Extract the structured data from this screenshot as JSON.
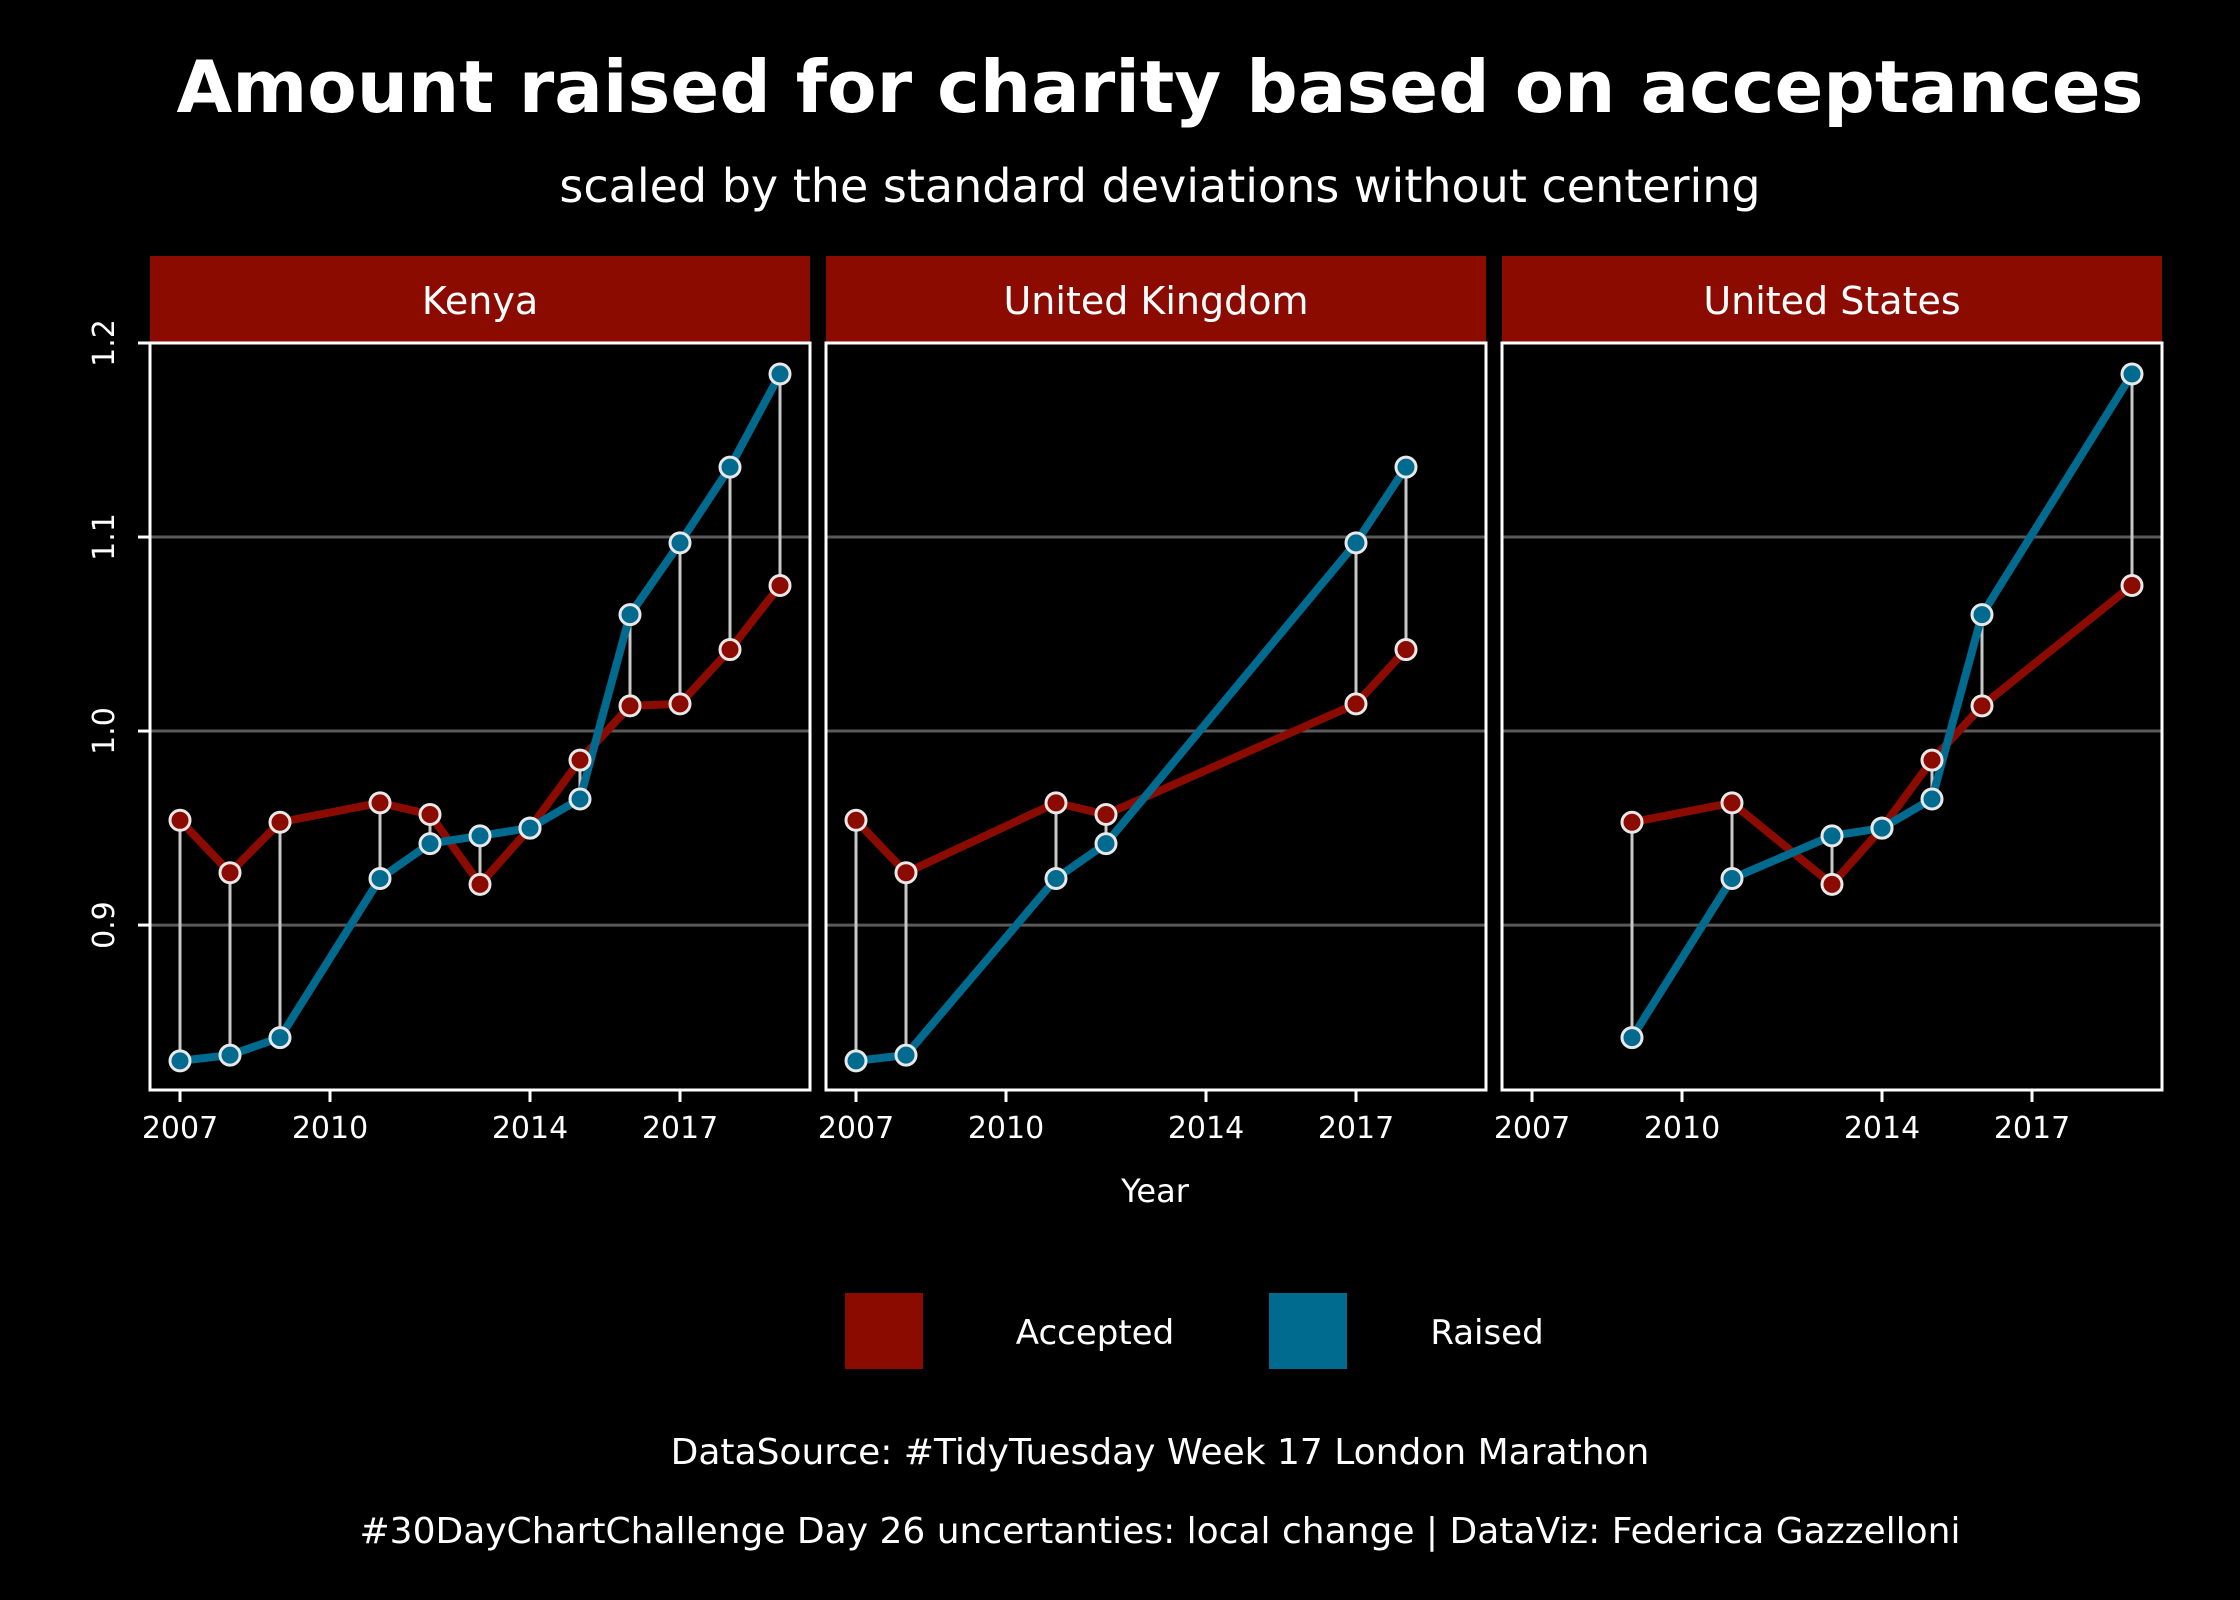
{
  "colors": {
    "background": "#000000",
    "strip": "#8b0b00",
    "accepted": "#8b0b00",
    "raised": "#006a8f",
    "segment": "#c8c8c8",
    "grid": "#5a5a5a",
    "text": "#ffffff"
  },
  "chart_data": {
    "type": "line",
    "title": "Amount raised for charity based on acceptances",
    "subtitle": "scaled by the standard deviations without centering",
    "xlabel": "Year",
    "ylabel": "",
    "xlim": [
      2006.4,
      2019.6
    ],
    "ylim": [
      0.815,
      1.2
    ],
    "x_ticks": [
      2007,
      2010,
      2014,
      2017
    ],
    "y_ticks": [
      0.9,
      1.0,
      1.1,
      1.2
    ],
    "y_tick_labels": [
      "0.9",
      "1.0",
      "1.1",
      "1.2"
    ],
    "grid": "horizontal",
    "legend_position": "bottom",
    "legend": [
      {
        "name": "Accepted",
        "color": "#8b0b00"
      },
      {
        "name": "Raised",
        "color": "#006a8f"
      }
    ],
    "facets": [
      {
        "name": "Kenya",
        "x": [
          2007,
          2008,
          2009,
          2011,
          2012,
          2013,
          2014,
          2015,
          2016,
          2017,
          2018,
          2019
        ],
        "series": [
          {
            "name": "Accepted",
            "values": [
              0.954,
              0.927,
              0.953,
              0.963,
              0.957,
              0.921,
              0.95,
              0.985,
              1.013,
              1.014,
              1.042,
              1.075
            ]
          },
          {
            "name": "Raised",
            "values": [
              0.83,
              0.833,
              0.842,
              0.924,
              0.942,
              0.946,
              0.95,
              0.965,
              1.06,
              1.097,
              1.136,
              1.184
            ]
          }
        ]
      },
      {
        "name": "United Kingdom",
        "x": [
          2007,
          2008,
          2011,
          2012,
          2017,
          2018
        ],
        "series": [
          {
            "name": "Accepted",
            "values": [
              0.954,
              0.927,
              0.963,
              0.957,
              1.014,
              1.042
            ]
          },
          {
            "name": "Raised",
            "values": [
              0.83,
              0.833,
              0.924,
              0.942,
              1.097,
              1.136
            ]
          }
        ]
      },
      {
        "name": "United States",
        "x": [
          2009,
          2011,
          2013,
          2014,
          2015,
          2016,
          2019
        ],
        "series": [
          {
            "name": "Accepted",
            "values": [
              0.953,
              0.963,
              0.921,
              0.95,
              0.985,
              1.013,
              1.075
            ]
          },
          {
            "name": "Raised",
            "values": [
              0.842,
              0.924,
              0.946,
              0.95,
              0.965,
              1.06,
              1.184
            ]
          }
        ]
      }
    ]
  },
  "captions": {
    "line1": "DataSource: #TidyTuesday Week 17 London Marathon",
    "line2": "#30DayChartChallenge Day 26 uncertanties: local change | DataViz: Federica Gazzelloni"
  }
}
